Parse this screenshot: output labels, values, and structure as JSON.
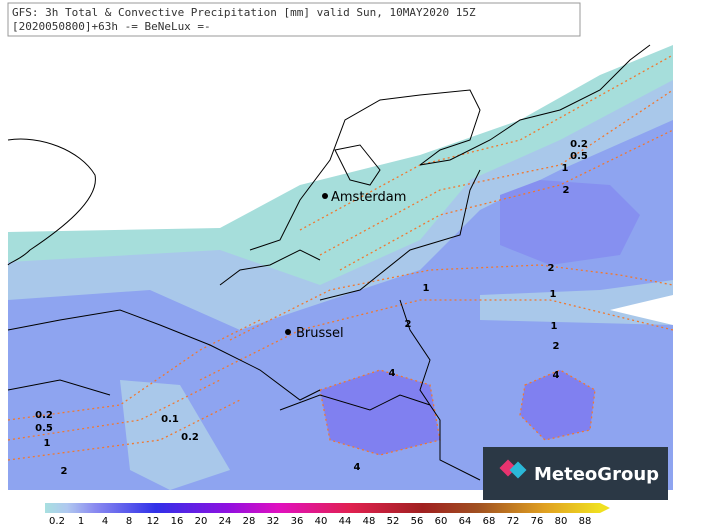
{
  "header": {
    "title": "GFS: 3h Total & Convective Precipitation [mm] valid Sun, 10MAY2020 15Z",
    "subtitle": "[2020050800]+63h -= BeNeLux =-"
  },
  "cities": [
    "Amsterdam",
    "Brussel"
  ],
  "contour_labels": [
    "0.2",
    "0.5",
    "1",
    "2",
    "2",
    "1",
    "1",
    "2",
    "4",
    "1",
    "2",
    "4",
    "4",
    "0.2",
    "0.5",
    "1",
    "2",
    "0.1",
    "0.2"
  ],
  "colorbar": {
    "labels": [
      "0.2",
      "1",
      "4",
      "8",
      "12",
      "16",
      "20",
      "24",
      "28",
      "32",
      "36",
      "40",
      "44",
      "48",
      "52",
      "56",
      "60",
      "64",
      "68",
      "72",
      "76",
      "80",
      "88"
    ]
  },
  "logo": "MeteoGroup"
}
